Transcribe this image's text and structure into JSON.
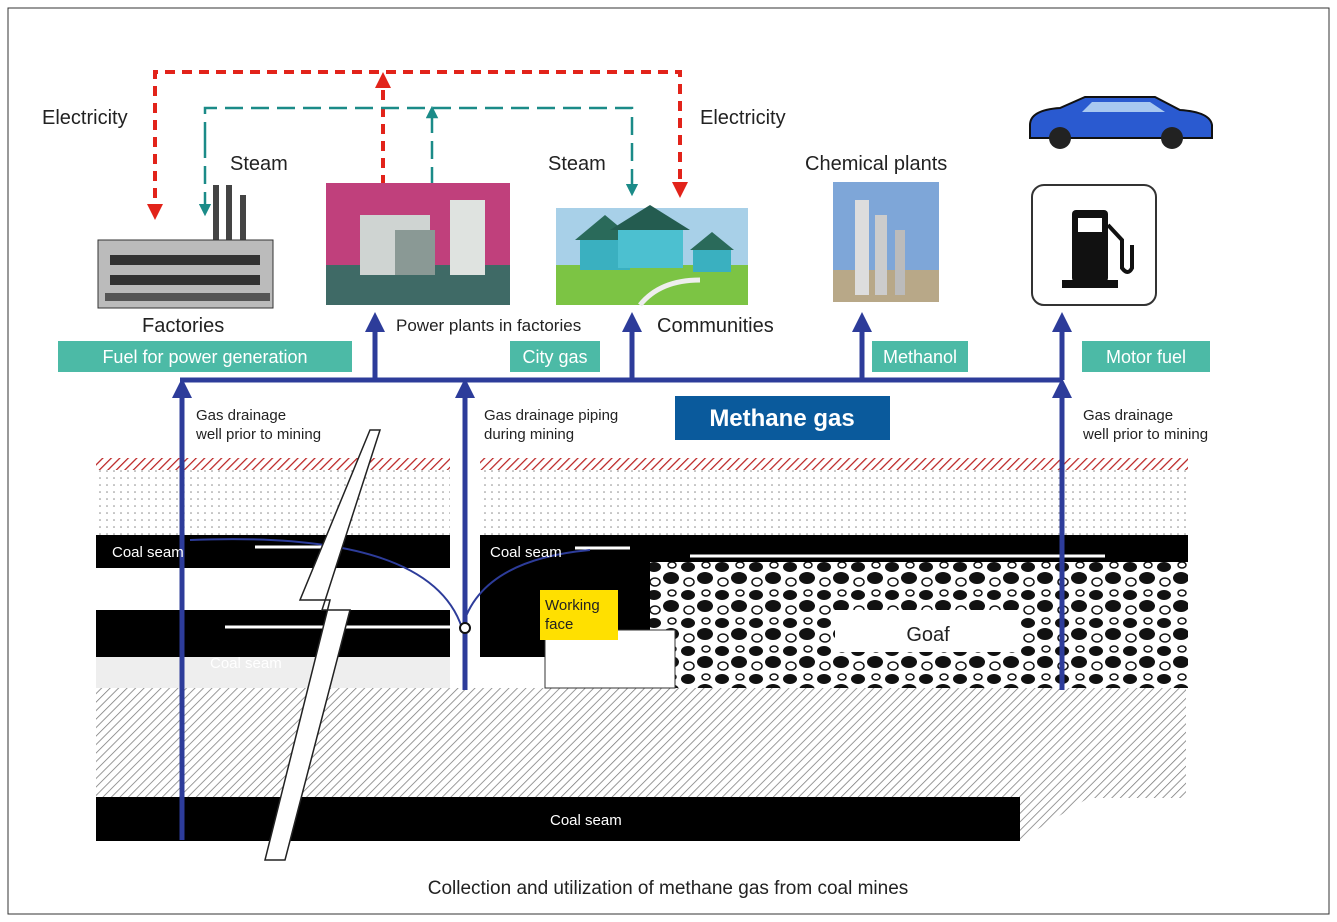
{
  "labels": {
    "electricity_left": "Electricity",
    "electricity_right": "Electricity",
    "steam_left": "Steam",
    "steam_right": "Steam",
    "chemical_plants": "Chemical plants",
    "factories": "Factories",
    "power_plants": "Power plants in factories",
    "communities": "Communities",
    "fuel_power": "Fuel for power generation",
    "city_gas": "City gas",
    "methanol": "Methanol",
    "motor_fuel": "Motor fuel",
    "methane_gas": "Methane gas",
    "well_left": [
      "Gas drainage",
      "well prior to mining"
    ],
    "piping": [
      "Gas drainage piping",
      "during mining"
    ],
    "well_right": [
      "Gas drainage",
      "well prior to mining"
    ],
    "coal_seam_upper_left": "Coal seam",
    "coal_seam_upper_right": "Coal seam",
    "coal_seam_lower_left": "Coal seam",
    "coal_seam_bottom": "Coal seam",
    "working_face": [
      "Working",
      "face"
    ],
    "goaf": "Goaf",
    "caption": "Collection and utilization of methane gas from coal mines"
  }
}
